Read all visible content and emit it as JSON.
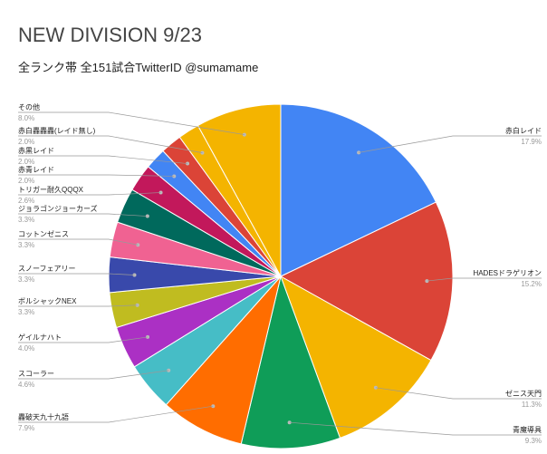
{
  "chart_data": {
    "type": "pie",
    "title": "NEW DIVISION 9/23",
    "subtitle": "全ランク帯 全151試合TwitterID @sumamame",
    "slices": [
      {
        "name": "赤白レイド",
        "value": 17.9,
        "pct_label": "17.9%",
        "color": "#4285f4"
      },
      {
        "name": "HADESドラゲリオン",
        "value": 15.2,
        "pct_label": "15.2%",
        "color": "#db4437"
      },
      {
        "name": "ゼニス天門",
        "value": 11.3,
        "pct_label": "11.3%",
        "color": "#f4b400"
      },
      {
        "name": "青魔導具",
        "value": 9.3,
        "pct_label": "9.3%",
        "color": "#0f9d58"
      },
      {
        "name": "轟破天九十九語",
        "value": 7.9,
        "pct_label": "7.9%",
        "color": "#ff6d00"
      },
      {
        "name": "スコーラー",
        "value": 4.6,
        "pct_label": "4.6%",
        "color": "#46bdc6"
      },
      {
        "name": "ゲイルナハト",
        "value": 4.0,
        "pct_label": "4.0%",
        "color": "#ab30c4"
      },
      {
        "name": "ボルシャックNEX",
        "value": 3.3,
        "pct_label": "3.3%",
        "color": "#c0bc20"
      },
      {
        "name": "スノーフェアリー",
        "value": 3.3,
        "pct_label": "3.3%",
        "color": "#3949ab"
      },
      {
        "name": "コットンゼニス",
        "value": 3.3,
        "pct_label": "3.3%",
        "color": "#f06292"
      },
      {
        "name": "ジョラゴンジョーカーズ",
        "value": 3.3,
        "pct_label": "3.3%",
        "color": "#00695c"
      },
      {
        "name": "トリガー耐久QQQX",
        "value": 2.6,
        "pct_label": "2.6%",
        "color": "#c2185b"
      },
      {
        "name": "赤青レイド",
        "value": 2.0,
        "pct_label": "2.0%",
        "color": "#4285f4"
      },
      {
        "name": "赤黒レイド",
        "value": 2.0,
        "pct_label": "2.0%",
        "color": "#db4437"
      },
      {
        "name": "赤白轟轟轟(レイド無し)",
        "value": 2.0,
        "pct_label": "2.0%",
        "color": "#f4b400"
      },
      {
        "name": "その他",
        "value": 8.0,
        "pct_label": "8.0%",
        "color": "#f4b400"
      }
    ],
    "legend": "none"
  }
}
